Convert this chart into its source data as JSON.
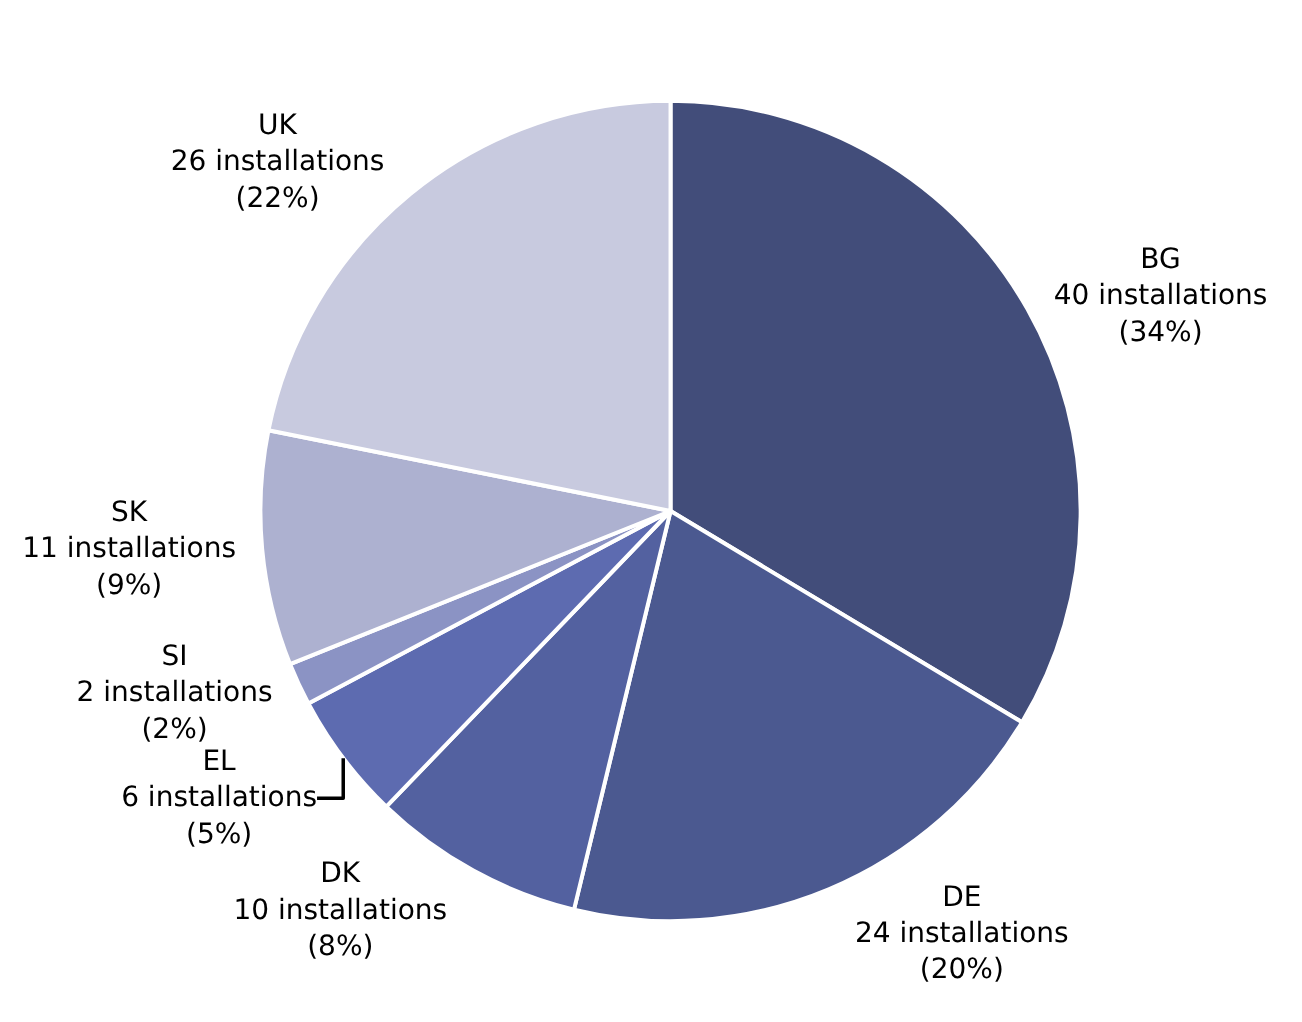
{
  "chart_data": {
    "type": "pie",
    "categories": [
      "BG",
      "DE",
      "DK",
      "EL",
      "SI",
      "SK",
      "UK"
    ],
    "values": [
      40,
      24,
      10,
      6,
      2,
      11,
      26
    ],
    "colors": [
      "#424d7a",
      "#4b5990",
      "#5361a0",
      "#5d6bb0",
      "#8b93c4",
      "#adb1d0",
      "#c8cadf"
    ],
    "value_labels": [
      "40 installations\n(34%)",
      "24 installations\n(20%)",
      "10 installations\n(8%)",
      "6 installations\n(5%)",
      "2 installations\n(2%)",
      "11 installations\n(9%)",
      "26 installations\n(22%)"
    ],
    "legend": false
  }
}
